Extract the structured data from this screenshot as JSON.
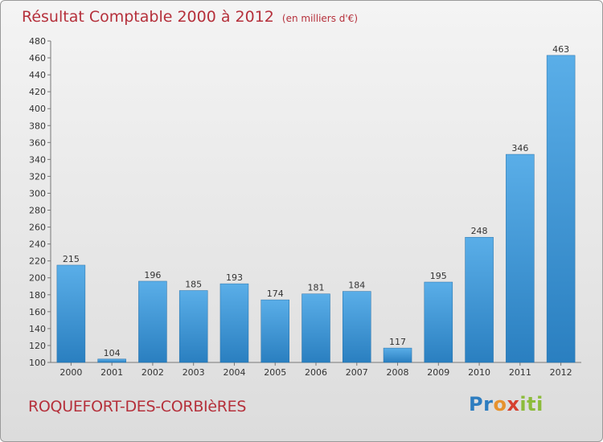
{
  "header": {
    "title": "Résultat Comptable 2000 à 2012",
    "subtitle": "(en milliers d'€)"
  },
  "footer": {
    "commune": "ROQUEFORT-DES-CORBIèRES",
    "logo_parts": [
      "Pr",
      "o",
      "x",
      "iti"
    ]
  },
  "colors": {
    "title": "#b5303b",
    "bar_top": "#5aaee8",
    "bar_bottom": "#2a7fc0",
    "logo_blue": "#2d7dc0",
    "logo_orange": "#e6922e",
    "logo_green": "#8cbc3b",
    "logo_red": "#d6402f"
  },
  "chart_data": {
    "type": "bar",
    "title": "Résultat Comptable 2000 à 2012",
    "subtitle": "(en milliers d'€)",
    "xlabel": "",
    "ylabel": "",
    "categories": [
      "2000",
      "2001",
      "2002",
      "2003",
      "2004",
      "2005",
      "2006",
      "2007",
      "2008",
      "2009",
      "2010",
      "2011",
      "2012"
    ],
    "values": [
      215,
      104,
      196,
      185,
      193,
      174,
      181,
      184,
      117,
      195,
      248,
      346,
      463
    ],
    "ylim": [
      100,
      480
    ],
    "yticks": [
      100,
      120,
      140,
      160,
      180,
      200,
      220,
      240,
      260,
      280,
      300,
      320,
      340,
      360,
      380,
      400,
      420,
      440,
      460,
      480
    ],
    "grid": false,
    "data_labels": true
  }
}
